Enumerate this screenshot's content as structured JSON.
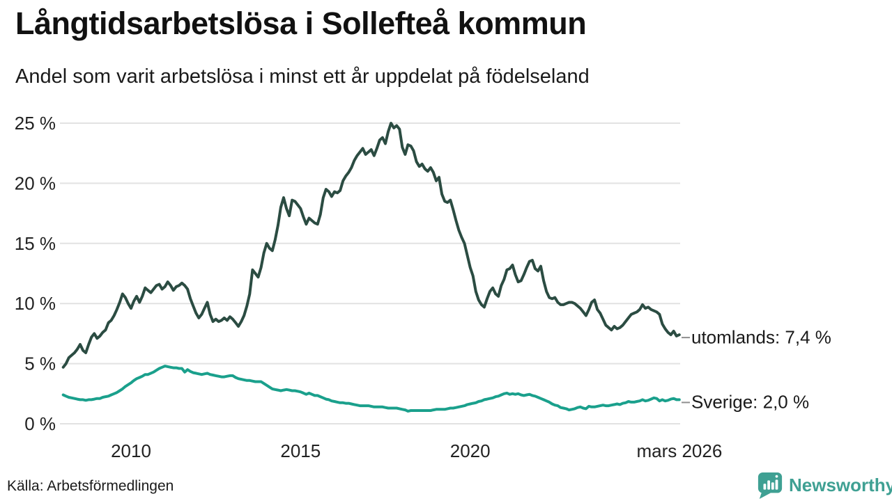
{
  "colors": {
    "utomlands_line": "#2b4c42",
    "sverige_line": "#1aa08c",
    "grid": "#e2e2e2",
    "text": "#1a1a1a",
    "legend_dash": "#8f8f8f",
    "brand": "#3fa093",
    "background": "#ffffff"
  },
  "chart_data": {
    "type": "line",
    "title": "Långtidsarbetslösa i Sollefteå kommun",
    "subtitle": "Andel som varit arbetslösa i minst ett år uppdelat på födelseland",
    "source": "Källa: Arbetsförmedlingen",
    "unit": "%",
    "grid": true,
    "legend_position": "right-of-line-ends",
    "x_axis": {
      "range": [
        2008.0,
        2026.25
      ],
      "ticks": [
        {
          "value": 2010,
          "label": "2010"
        },
        {
          "value": 2015,
          "label": "2015"
        },
        {
          "value": 2020,
          "label": "2020"
        },
        {
          "value": 2026.17,
          "label": "mars 2026"
        }
      ]
    },
    "y_axis": {
      "range": [
        0,
        25
      ],
      "ticks": [
        {
          "value": 0,
          "label": "0 %"
        },
        {
          "value": 5,
          "label": "5 %"
        },
        {
          "value": 10,
          "label": "10 %"
        },
        {
          "value": 15,
          "label": "15 %"
        },
        {
          "value": 20,
          "label": "20 %"
        },
        {
          "value": 25,
          "label": "25 %"
        }
      ]
    },
    "series": [
      {
        "name": "utomlands",
        "label": "utomlands: 7,4 %",
        "last_value": 7.4,
        "color": "#2b4c42",
        "x_start": 2008.0,
        "x_step_years": 0.0833333,
        "values": [
          4.7,
          5.0,
          5.5,
          5.7,
          5.9,
          6.2,
          6.6,
          6.1,
          5.9,
          6.6,
          7.2,
          7.5,
          7.1,
          7.3,
          7.6,
          7.8,
          8.4,
          8.6,
          9.0,
          9.5,
          10.1,
          10.8,
          10.5,
          10.0,
          9.6,
          10.2,
          10.6,
          10.1,
          10.6,
          11.3,
          11.1,
          10.9,
          11.2,
          11.5,
          11.6,
          11.2,
          11.4,
          11.8,
          11.5,
          11.1,
          11.4,
          11.5,
          11.7,
          11.5,
          11.2,
          10.4,
          9.8,
          9.2,
          8.8,
          9.1,
          9.6,
          10.1,
          9.1,
          8.5,
          8.7,
          8.5,
          8.6,
          8.8,
          8.6,
          8.9,
          8.7,
          8.4,
          8.1,
          8.5,
          9.0,
          9.8,
          10.8,
          12.8,
          12.5,
          12.2,
          13.0,
          14.2,
          15.0,
          14.6,
          14.4,
          15.3,
          16.5,
          18.0,
          18.8,
          17.9,
          17.3,
          18.6,
          18.5,
          18.2,
          17.9,
          17.2,
          16.6,
          17.1,
          16.9,
          16.7,
          16.6,
          17.4,
          18.8,
          19.5,
          19.3,
          18.9,
          19.3,
          19.2,
          19.4,
          20.2,
          20.6,
          20.9,
          21.3,
          21.9,
          22.3,
          22.6,
          22.9,
          22.4,
          22.6,
          22.8,
          22.3,
          22.9,
          23.6,
          23.8,
          23.3,
          24.3,
          25.0,
          24.6,
          24.8,
          24.5,
          23.0,
          22.4,
          23.2,
          23.1,
          22.7,
          21.8,
          21.4,
          21.6,
          21.2,
          21.0,
          21.3,
          20.9,
          20.2,
          20.5,
          19.1,
          18.5,
          18.4,
          18.6,
          17.8,
          16.9,
          16.1,
          15.5,
          15.0,
          14.0,
          13.0,
          12.3,
          11.0,
          10.3,
          9.9,
          9.7,
          10.4,
          11.0,
          11.3,
          10.8,
          10.6,
          11.5,
          12.0,
          12.8,
          12.9,
          13.2,
          12.4,
          11.8,
          11.9,
          12.4,
          13.0,
          13.5,
          13.6,
          12.9,
          12.7,
          13.1,
          11.9,
          11.0,
          10.5,
          10.4,
          10.5,
          10.1,
          9.9,
          9.9,
          10.0,
          10.1,
          10.1,
          10.0,
          9.8,
          9.6,
          9.3,
          9.0,
          9.5,
          10.1,
          10.3,
          9.5,
          9.2,
          8.7,
          8.2,
          8.0,
          7.8,
          8.1,
          7.9,
          8.0,
          8.2,
          8.5,
          8.8,
          9.1,
          9.2,
          9.3,
          9.5,
          9.9,
          9.6,
          9.7,
          9.5,
          9.4,
          9.3,
          9.1,
          8.3,
          7.9,
          7.6,
          7.4,
          7.7,
          7.3,
          7.4
        ]
      },
      {
        "name": "Sverige",
        "label": "Sverige: 2,0 %",
        "last_value": 2.0,
        "color": "#1aa08c",
        "x_start": 2008.0,
        "x_step_years": 0.0833333,
        "values": [
          2.4,
          2.3,
          2.2,
          2.15,
          2.1,
          2.05,
          2.0,
          2.0,
          1.95,
          2.0,
          2.0,
          2.05,
          2.1,
          2.1,
          2.2,
          2.25,
          2.3,
          2.4,
          2.5,
          2.6,
          2.75,
          2.9,
          3.1,
          3.25,
          3.4,
          3.6,
          3.75,
          3.85,
          3.95,
          4.1,
          4.1,
          4.2,
          4.3,
          4.45,
          4.6,
          4.7,
          4.8,
          4.75,
          4.7,
          4.65,
          4.65,
          4.6,
          4.6,
          4.3,
          4.5,
          4.35,
          4.25,
          4.2,
          4.15,
          4.1,
          4.15,
          4.2,
          4.1,
          4.05,
          4.0,
          3.95,
          3.9,
          3.9,
          3.95,
          4.0,
          4.0,
          3.85,
          3.75,
          3.7,
          3.65,
          3.6,
          3.6,
          3.55,
          3.5,
          3.5,
          3.5,
          3.35,
          3.2,
          3.05,
          2.9,
          2.85,
          2.8,
          2.75,
          2.8,
          2.85,
          2.8,
          2.75,
          2.75,
          2.7,
          2.65,
          2.55,
          2.45,
          2.55,
          2.45,
          2.35,
          2.35,
          2.25,
          2.15,
          2.05,
          2.0,
          1.9,
          1.85,
          1.8,
          1.75,
          1.75,
          1.7,
          1.7,
          1.65,
          1.6,
          1.55,
          1.5,
          1.5,
          1.5,
          1.5,
          1.45,
          1.4,
          1.4,
          1.4,
          1.4,
          1.35,
          1.3,
          1.3,
          1.3,
          1.3,
          1.25,
          1.2,
          1.15,
          1.05,
          1.1,
          1.1,
          1.1,
          1.1,
          1.1,
          1.1,
          1.1,
          1.1,
          1.15,
          1.2,
          1.2,
          1.2,
          1.2,
          1.25,
          1.3,
          1.3,
          1.35,
          1.4,
          1.45,
          1.5,
          1.6,
          1.65,
          1.7,
          1.75,
          1.85,
          1.9,
          2.0,
          2.05,
          2.1,
          2.15,
          2.25,
          2.3,
          2.4,
          2.5,
          2.55,
          2.45,
          2.5,
          2.45,
          2.5,
          2.4,
          2.35,
          2.4,
          2.45,
          2.35,
          2.3,
          2.2,
          2.1,
          2.0,
          1.9,
          1.8,
          1.65,
          1.55,
          1.5,
          1.35,
          1.3,
          1.25,
          1.15,
          1.2,
          1.25,
          1.35,
          1.4,
          1.3,
          1.25,
          1.45,
          1.4,
          1.4,
          1.45,
          1.5,
          1.55,
          1.5,
          1.5,
          1.55,
          1.6,
          1.65,
          1.6,
          1.7,
          1.75,
          1.85,
          1.8,
          1.8,
          1.85,
          1.9,
          2.0,
          1.9,
          1.95,
          2.05,
          2.15,
          2.1,
          1.9,
          2.0,
          1.9,
          1.95,
          2.05,
          2.1,
          2.0,
          2.0
        ]
      }
    ]
  },
  "footer": {
    "brand": "Newsworthy"
  }
}
